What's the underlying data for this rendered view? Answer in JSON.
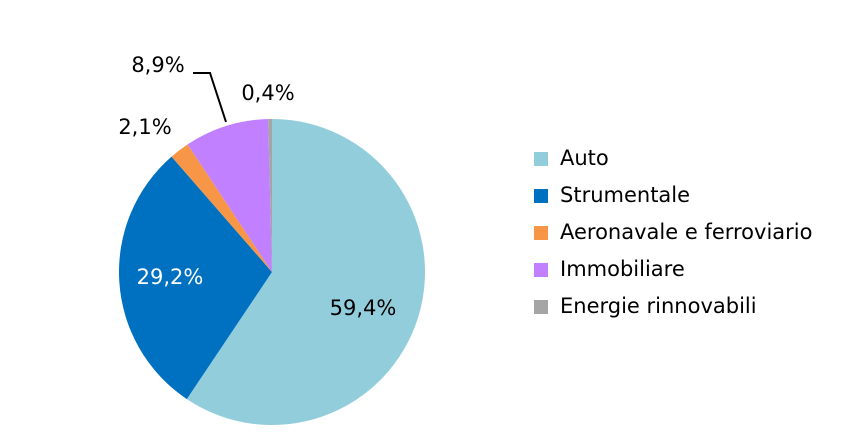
{
  "chart_data": {
    "type": "pie",
    "categories": [
      "Auto",
      "Strumentale",
      "Aeronavale e ferroviario",
      "Immobiliare",
      "Energie rinnovabili"
    ],
    "values": [
      59.4,
      29.2,
      2.1,
      8.9,
      0.4
    ],
    "value_labels": [
      "59,4%",
      "29,2%",
      "2,1%",
      "8,9%",
      "0,4%"
    ],
    "colors": [
      "#92cddc",
      "#0070c0",
      "#f79646",
      "#c080ff",
      "#a5a5a5"
    ],
    "legend": "right"
  }
}
